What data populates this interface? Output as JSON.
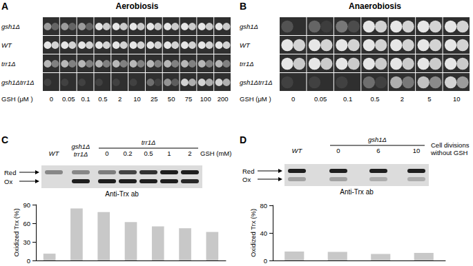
{
  "chart_data": [
    {
      "type": "bar",
      "ylabel": "Oxidized Trx (%)",
      "categories": [
        null,
        null,
        null,
        null,
        null,
        null,
        null
      ],
      "values": [
        11,
        84,
        78,
        62,
        55,
        52,
        46
      ],
      "color": "#c8c8c8",
      "ylim": [
        0,
        90
      ],
      "yticks": [
        0,
        30,
        60,
        90
      ],
      "grid": false
    },
    {
      "type": "bar",
      "ylabel": "Oxidized Trx (%)",
      "categories": [
        null,
        null,
        null,
        null
      ],
      "values": [
        13,
        12.5,
        9.5,
        11
      ],
      "color": "#c8c8c8",
      "ylim": [
        0,
        80
      ],
      "yticks": [
        0,
        40,
        80
      ],
      "grid": false
    }
  ],
  "figure": {
    "A": {
      "letter": "A",
      "title": "Aerobiosis",
      "strains": [
        "gsh1Δ",
        "WT",
        "trr1Δ",
        "gsh1Δtrr1Δ"
      ],
      "x_label": "GSH (μM )",
      "concentrations": [
        "0",
        "0.05",
        "0.1",
        "0.5",
        "2",
        "10",
        "25",
        "50",
        "75",
        "100",
        "200"
      ]
    },
    "B": {
      "letter": "B",
      "title": "Anaerobiosis",
      "strains": [
        "gsh1Δ",
        "WT",
        "trr1Δ",
        "gsh1Δtrr1Δ"
      ],
      "x_label": "GSH (μM )",
      "concentrations": [
        "0",
        "0.05",
        "0.1",
        "0.5",
        "2",
        "5",
        "10"
      ]
    },
    "C": {
      "letter": "C",
      "lanes": [
        [
          "WT"
        ],
        [
          "gsh1Δ",
          "trr1Δ"
        ]
      ],
      "group": "trr1Δ",
      "group_lanes": [
        "0",
        "0.2",
        "0.5",
        "1",
        "2"
      ],
      "group_label": [
        "GSH (mM)"
      ],
      "bands": [
        "Red",
        "Ox"
      ],
      "antibody": "Anti-Trx ab"
    },
    "D": {
      "letter": "D",
      "lanes": [
        [
          "WT"
        ]
      ],
      "group": "gsh1Δ",
      "group_lanes": [
        "0",
        "6",
        "10"
      ],
      "group_label": [
        "Cell divisions",
        "without GSH"
      ],
      "bands": [
        "Red",
        "Ox"
      ],
      "antibody": "Anti-Trx ab"
    }
  }
}
